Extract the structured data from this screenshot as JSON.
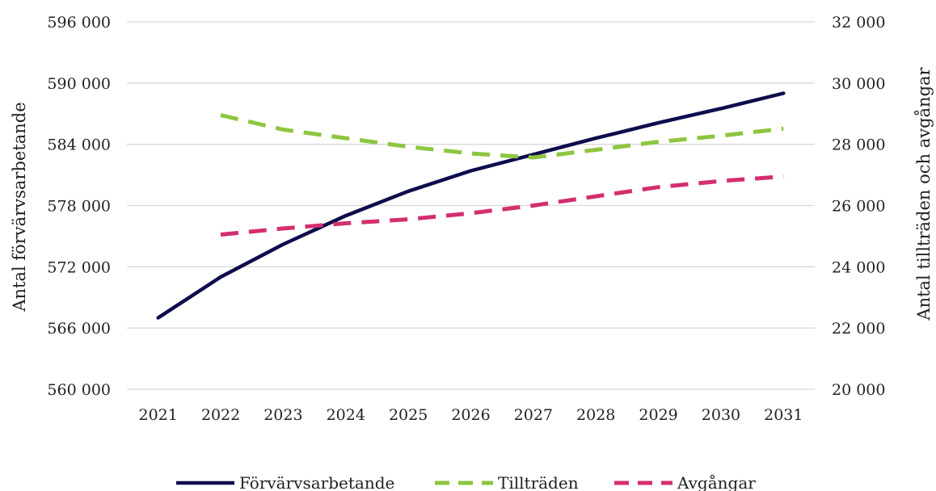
{
  "chart_data": {
    "type": "line",
    "x": [
      "2021",
      "2022",
      "2023",
      "2024",
      "2025",
      "2026",
      "2027",
      "2028",
      "2029",
      "2030",
      "2031"
    ],
    "ylabel_left": "Antal förvärvsarbetande",
    "ylabel_right": "Antal tillträden och avgångar",
    "ylim_left": [
      560000,
      596000
    ],
    "ylim_right": [
      20000,
      32000
    ],
    "yticks_left": [
      "560 000",
      "566 000",
      "572 000",
      "578 000",
      "584 000",
      "590 000",
      "596 000"
    ],
    "yticks_right": [
      "20 000",
      "22 000",
      "24 000",
      "26 000",
      "28 000",
      "30 000",
      "32 000"
    ],
    "grid": true,
    "legend_position": "bottom",
    "series": [
      {
        "name": "Förvärvsarbetande",
        "axis": "left",
        "style": "solid",
        "color": "#0d0d4d",
        "values": [
          567000,
          571000,
          574200,
          577000,
          579400,
          581400,
          583000,
          584600,
          586100,
          587500,
          589000
        ]
      },
      {
        "name": "Tillträden",
        "axis": "right",
        "style": "dashed",
        "color": "#8dc63f",
        "values": [
          null,
          28950,
          28480,
          28200,
          27920,
          27700,
          27570,
          27820,
          28080,
          28280,
          28510
        ]
      },
      {
        "name": "Avgångar",
        "axis": "right",
        "style": "dashed",
        "color": "#d42e6e",
        "values": [
          null,
          25050,
          25250,
          25420,
          25550,
          25750,
          26000,
          26300,
          26600,
          26800,
          26950
        ]
      }
    ]
  }
}
